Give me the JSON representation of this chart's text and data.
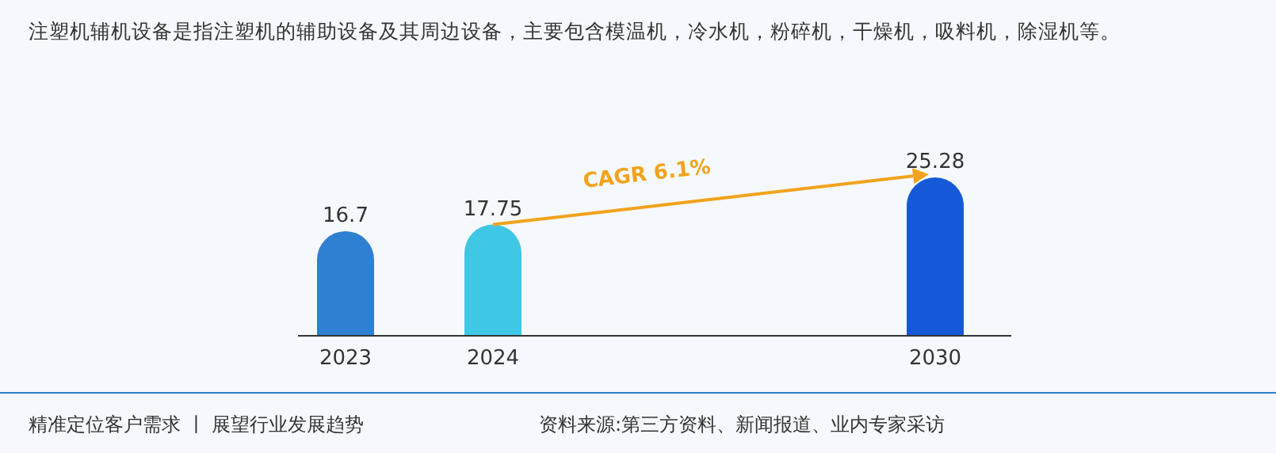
{
  "chart_data": {
    "type": "bar",
    "title": "注塑机辅机设备是指注塑机的辅助设备及其周边设备，主要包含模温机，冷水机，粉碎机，干燥机，吸料机，除湿机等。",
    "categories": [
      "2023",
      "2024",
      null,
      null,
      "2030"
    ],
    "values": [
      16.7,
      17.75,
      null,
      null,
      25.28
    ],
    "colors": [
      "#2f7fd2",
      "#3ec8e6",
      null,
      null,
      "#1559d8"
    ],
    "data_labels": true,
    "annotations": [
      "CAGR 6.1%",
      "精准定位客户需求 丨 展望行业发展趋势",
      "资料来源:第三方资料、新闻报道、业内专家采访"
    ]
  }
}
